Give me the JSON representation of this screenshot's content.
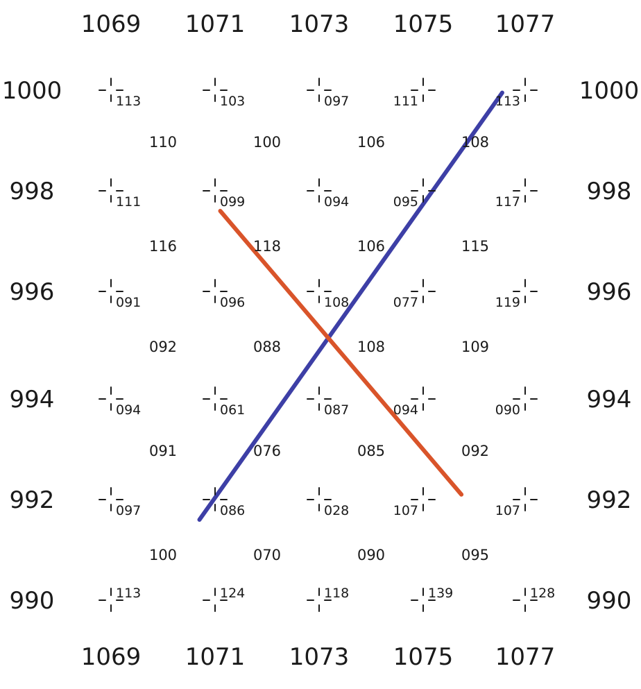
{
  "eastings": [
    "1069",
    "1071",
    "1073",
    "1075",
    "1077"
  ],
  "northings": [
    "1000",
    "998",
    "996",
    "994",
    "992",
    "990"
  ],
  "grid_point_values": [
    [
      "113",
      "103",
      "097",
      "111",
      "113"
    ],
    [
      "111",
      "099",
      "094",
      "095",
      "117"
    ],
    [
      "091",
      "096",
      "108",
      "077",
      "119"
    ],
    [
      "094",
      "061",
      "087",
      "094",
      "090"
    ],
    [
      "097",
      "086",
      "028",
      "107",
      "107"
    ],
    [
      "113",
      "124",
      "118",
      "139",
      "128"
    ]
  ],
  "midpoint_values": [
    [
      "110",
      "100",
      "106",
      "108"
    ],
    [
      "116",
      "118",
      "106",
      "115"
    ],
    [
      "092",
      "088",
      "108",
      "109"
    ],
    [
      "091",
      "076",
      "085",
      "092"
    ],
    [
      "100",
      "070",
      "090",
      "095"
    ]
  ],
  "lines": [
    {
      "color": "#3d3fa6",
      "from": {
        "e": 1070.7,
        "n": 991.6
      },
      "to": {
        "e": 1076.55,
        "n": 999.95
      }
    },
    {
      "color": "#d9542a",
      "from": {
        "e": 1071.1,
        "n": 997.6
      },
      "to": {
        "e": 1075.75,
        "n": 992.1
      }
    }
  ]
}
